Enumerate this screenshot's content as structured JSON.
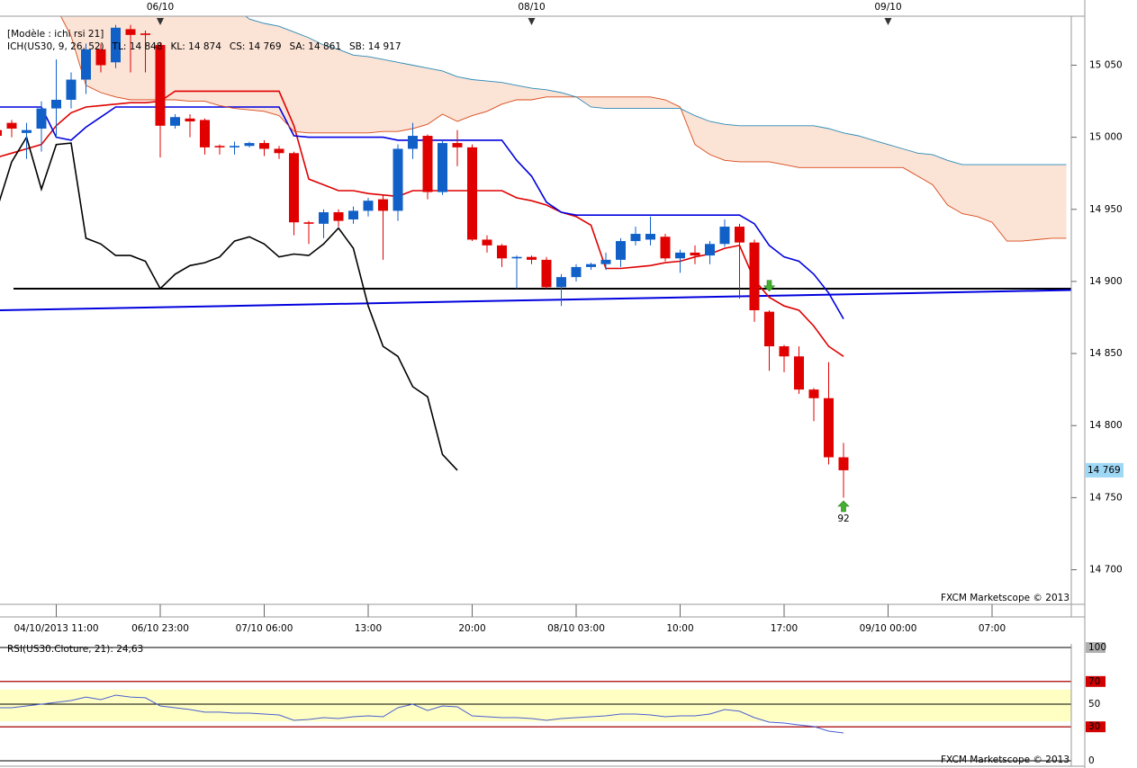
{
  "chart_data": [
    {
      "type": "candlestick",
      "header": "[Modèle : ichi rsi 21]",
      "indicator": "ICH(US30, 9, 26, 52)",
      "indicator_color": "#e00000",
      "categories": [
        null,
        null,
        null,
        null,
        "04/10/2013 11:00",
        null,
        null,
        null,
        null,
        null,
        null,
        "06/10 23:00",
        null,
        null,
        null,
        null,
        null,
        null,
        "07/10 06:00",
        null,
        null,
        null,
        null,
        null,
        null,
        "13:00",
        null,
        null,
        null,
        null,
        null,
        null,
        "20:00",
        null,
        null,
        null,
        null,
        null,
        null,
        "08/10 03:00",
        null,
        null,
        null,
        null,
        null,
        null,
        "10:00",
        null,
        null,
        null,
        null,
        null,
        null,
        "17:00",
        null,
        null,
        null,
        null,
        null,
        null,
        "09/10 00:00",
        null,
        null,
        null,
        null,
        null,
        null,
        "07:00",
        null,
        null,
        null,
        null,
        null
      ],
      "day_labels": [
        {
          "slot": 11,
          "label": "06/10"
        },
        {
          "slot": 36,
          "label": "08/10"
        },
        {
          "slot": 60,
          "label": "09/10"
        }
      ],
      "open": [
        15005,
        15010,
        15003,
        15006,
        15020,
        15026,
        15040,
        15061,
        15052,
        15075,
        15072,
        15064,
        15008,
        15013,
        15012,
        14994,
        14993,
        14994,
        14996,
        14992,
        14989,
        14941,
        14940,
        14948,
        14943,
        14949,
        14957,
        14949,
        14992,
        15001,
        14962,
        14996,
        14993,
        14929,
        14925,
        14916,
        14917,
        14915,
        14896,
        14903,
        14910,
        14912,
        14915,
        14928,
        14929,
        14931,
        14916,
        14920,
        14918,
        14926,
        14938,
        14927,
        14879,
        14855,
        14848,
        14825,
        14819,
        14778,
        null,
        null,
        null,
        null,
        null,
        null,
        null,
        null,
        null,
        null,
        null,
        null,
        null,
        null,
        null
      ],
      "high": [
        15008,
        15012,
        15010,
        15025,
        15054,
        15045,
        15065,
        15065,
        15078,
        15078,
        15074,
        15066,
        15016,
        15016,
        15013,
        14995,
        14997,
        14997,
        14998,
        14994,
        14990,
        14942,
        14950,
        14950,
        14952,
        14958,
        14960,
        14995,
        15010,
        15002,
        14998,
        15005,
        14995,
        14932,
        14926,
        14918,
        14918,
        14917,
        14905,
        14912,
        14913,
        14920,
        14930,
        14938,
        14945,
        14933,
        14922,
        14925,
        14928,
        14943,
        14940,
        14929,
        14880,
        14856,
        14855,
        14826,
        14844,
        14788,
        null,
        null,
        null,
        null,
        null,
        null,
        null,
        null,
        null,
        null,
        null,
        null,
        null,
        null,
        null
      ],
      "low": [
        14995,
        15000,
        14985,
        14990,
        15000,
        15020,
        15030,
        15045,
        15048,
        15045,
        15045,
        14986,
        15006,
        15000,
        14988,
        14988,
        14988,
        14993,
        14987,
        14985,
        14932,
        14926,
        14930,
        14938,
        14940,
        14945,
        14915,
        14942,
        14985,
        14957,
        14960,
        14980,
        14928,
        14920,
        14910,
        14895,
        14912,
        14895,
        14883,
        14900,
        14908,
        14908,
        14910,
        14925,
        14925,
        14914,
        14906,
        14912,
        14912,
        14924,
        14888,
        14872,
        14838,
        14837,
        14822,
        14803,
        14773,
        14750,
        null,
        null,
        null,
        null,
        null,
        null,
        null,
        null,
        null,
        null,
        null,
        null,
        null,
        null,
        null
      ],
      "close": [
        15001,
        15006,
        15005,
        15020,
        15026,
        15040,
        15061,
        15050,
        15076,
        15071,
        15071,
        15008,
        15014,
        15011,
        14993,
        14993,
        14994,
        14996,
        14992,
        14989,
        14941,
        14940,
        14948,
        14942,
        14949,
        14956,
        14949,
        14992,
        15001,
        14962,
        14996,
        14993,
        14929,
        14925,
        14916,
        14917,
        14915,
        14896,
        14903,
        14910,
        14912,
        14915,
        14928,
        14933,
        14933,
        14916,
        14920,
        14918,
        14926,
        14938,
        14927,
        14880,
        14855,
        14848,
        14825,
        14819,
        14778,
        14769,
        null,
        null,
        null,
        null,
        null,
        null,
        null,
        null,
        null,
        null,
        null,
        null,
        null,
        null,
        null
      ],
      "up_color": "#1060c8",
      "down_color": "#e00000",
      "series": [
        {
          "name": "TL: 14 848",
          "color": "#e00000",
          "width": 1.6,
          "values": [
            14986,
            14989,
            14992,
            14995,
            15008,
            15017,
            15021,
            15022,
            15023,
            15024,
            15024,
            15025,
            15032,
            15032,
            15032,
            15032,
            15032,
            15032,
            15032,
            15032,
            15008,
            14971,
            14967,
            14963,
            14963,
            14961,
            14960,
            14959,
            14963,
            14963,
            14963,
            14963,
            14963,
            14963,
            14963,
            14958,
            14956,
            14953,
            14948,
            14945,
            14939,
            14909,
            14909,
            14910,
            14911,
            14913,
            14914,
            14917,
            14919,
            14923,
            14925,
            14901,
            14889,
            14883,
            14880,
            14869,
            14855,
            14848,
            null,
            null,
            null,
            null,
            null,
            null,
            null,
            null,
            null,
            null,
            null,
            null,
            null,
            null,
            null
          ]
        },
        {
          "name": "KL: 14 874",
          "color": "#0000e0",
          "width": 1.6,
          "values": [
            15021,
            15021,
            15021,
            15021,
            15000,
            14998,
            15007,
            15014,
            15021,
            15021,
            15021,
            15021,
            15021,
            15021,
            15021,
            15021,
            15021,
            15021,
            15021,
            15021,
            15001,
            15000,
            15000,
            15000,
            15000,
            15000,
            15000,
            14998,
            14998,
            14998,
            14998,
            14998,
            14998,
            14998,
            14998,
            14984,
            14973,
            14955,
            14948,
            14946,
            14946,
            14946,
            14946,
            14946,
            14946,
            14946,
            14946,
            14946,
            14946,
            14946,
            14946,
            14940,
            14925,
            14917,
            14914,
            14905,
            14892,
            14874,
            null,
            null,
            null,
            null,
            null,
            null,
            null,
            null,
            null,
            null,
            null,
            null,
            null,
            null,
            null
          ]
        },
        {
          "name": "CS: 14 769",
          "color": "#000000",
          "width": 1.6,
          "values": [
            14950,
            14983,
            15000,
            14964,
            14995,
            14996,
            14930,
            14926,
            14918,
            14918,
            14914,
            14895,
            14905,
            14911,
            14913,
            14917,
            14928,
            14931,
            14926,
            14917,
            14919,
            14918,
            14926,
            14937,
            14923,
            14883,
            14855,
            14848,
            14827,
            14820,
            14780,
            14769,
            null,
            null,
            null,
            null,
            null,
            null,
            null,
            null,
            null,
            null,
            null,
            null,
            null,
            null,
            null,
            null,
            null,
            null,
            null,
            null,
            null,
            null,
            null,
            null,
            null,
            null,
            null,
            null,
            null,
            null,
            null,
            null,
            null,
            null,
            null,
            null,
            null,
            null,
            null,
            null,
            null
          ]
        },
        {
          "name": "SA: 14 861",
          "color": "#d84818",
          "width": 0.9,
          "fill_to_next": true,
          "values": [
            15090,
            15090,
            15090,
            15090,
            15090,
            15070,
            15036,
            15031,
            15028,
            15026,
            15026,
            15026,
            15026,
            15025,
            15025,
            15022,
            15020,
            15019,
            15018,
            15015,
            15004,
            15003,
            15003,
            15003,
            15003,
            15003,
            15004,
            15004,
            15006,
            15009,
            15016,
            15011,
            15015,
            15018,
            15023,
            15026,
            15026,
            15028,
            15028,
            15028,
            15028,
            15028,
            15028,
            15028,
            15028,
            15026,
            15021,
            14995,
            14988,
            14984,
            14983,
            14983,
            14983,
            14981,
            14979,
            14979,
            14979,
            14979,
            14979,
            14979,
            14979,
            14979,
            14973,
            14967,
            14953,
            14947,
            14945,
            14941,
            14928,
            14928,
            14929,
            14930,
            14930
          ]
        },
        {
          "name": "SB: 14 917",
          "color": "#2a8ab8",
          "width": 0.9,
          "values": [
            15090,
            15090,
            15090,
            15090,
            15090,
            15090,
            15090,
            15090,
            15090,
            15090,
            15090,
            15090,
            15090,
            15090,
            15090,
            15090,
            15090,
            15082,
            15079,
            15077,
            15073,
            15069,
            15064,
            15061,
            15057,
            15056,
            15054,
            15052,
            15050,
            15048,
            15046,
            15042,
            15040,
            15039,
            15038,
            15036,
            15034,
            15033,
            15031,
            15028,
            15021,
            15020,
            15020,
            15020,
            15020,
            15020,
            15020,
            15015,
            15011,
            15009,
            15008,
            15008,
            15008,
            15008,
            15008,
            15008,
            15006,
            15003,
            15001,
            14998,
            14995,
            14992,
            14989,
            14988,
            14984,
            14981,
            14981,
            14981,
            14981,
            14981,
            14981,
            14981,
            14981
          ]
        }
      ],
      "cloud_color": "#fbe3d6",
      "level": {
        "value": 14895,
        "color": "#000000"
      },
      "trend": {
        "start": 14880,
        "end": 14894,
        "color": "#0000dd"
      },
      "signals": [
        {
          "slot": 52,
          "value": 14897,
          "direction": "down"
        },
        {
          "slot": 57,
          "value": 14744,
          "direction": "up",
          "label": "92"
        }
      ],
      "signal_color": "#44b030",
      "last_price": {
        "value": 14769,
        "label": "14 769"
      },
      "ylim": [
        14676,
        15084
      ],
      "yticks": [
        {
          "value": 15050,
          "label": "15 050"
        },
        {
          "value": 15000,
          "label": "15 000"
        },
        {
          "value": 14950,
          "label": "14 950"
        },
        {
          "value": 14900,
          "label": "14 900"
        },
        {
          "value": 14850,
          "label": "14 850"
        },
        {
          "value": 14800,
          "label": "14 800"
        },
        {
          "value": 14750,
          "label": "14 750"
        },
        {
          "value": 14700,
          "label": "14 700"
        }
      ],
      "watermark": "FXCM Marketscope © 2013"
    },
    {
      "type": "line",
      "title": "RSI(US30.Cloture, 21): 24,63",
      "series": [
        {
          "color": "#4a5fd0",
          "values": [
            46.8,
            46.8,
            48.4,
            50,
            51.6,
            53.2,
            56.3,
            54,
            57.9,
            56.3,
            55.6,
            48.4,
            46.8,
            45.2,
            42.9,
            42.9,
            42.1,
            42.1,
            41.3,
            40.5,
            35.7,
            36.5,
            38.1,
            37.3,
            38.9,
            39.7,
            38.9,
            46.8,
            50,
            44.4,
            48.4,
            47.6,
            39.7,
            38.9,
            38.1,
            38.1,
            37.3,
            35.7,
            37.3,
            38.1,
            38.9,
            39.7,
            41.3,
            41.3,
            40.5,
            38.9,
            39.7,
            39.7,
            41.3,
            45.2,
            43.7,
            38.1,
            34.1,
            33.3,
            31.7,
            30.2,
            26.2,
            24.63,
            null,
            null,
            null,
            null,
            null,
            null,
            null,
            null,
            null,
            null,
            null,
            null,
            null,
            null,
            null
          ]
        }
      ],
      "levels": [
        {
          "value": 70,
          "color": "#d00000"
        },
        {
          "value": 30,
          "color": "#d00000"
        }
      ],
      "band_color": "#ffffc4",
      "ylim": [
        0,
        100
      ],
      "yticks": [
        100,
        70,
        50,
        30,
        0
      ],
      "watermark": "FXCM Marketscope © 2013"
    }
  ]
}
